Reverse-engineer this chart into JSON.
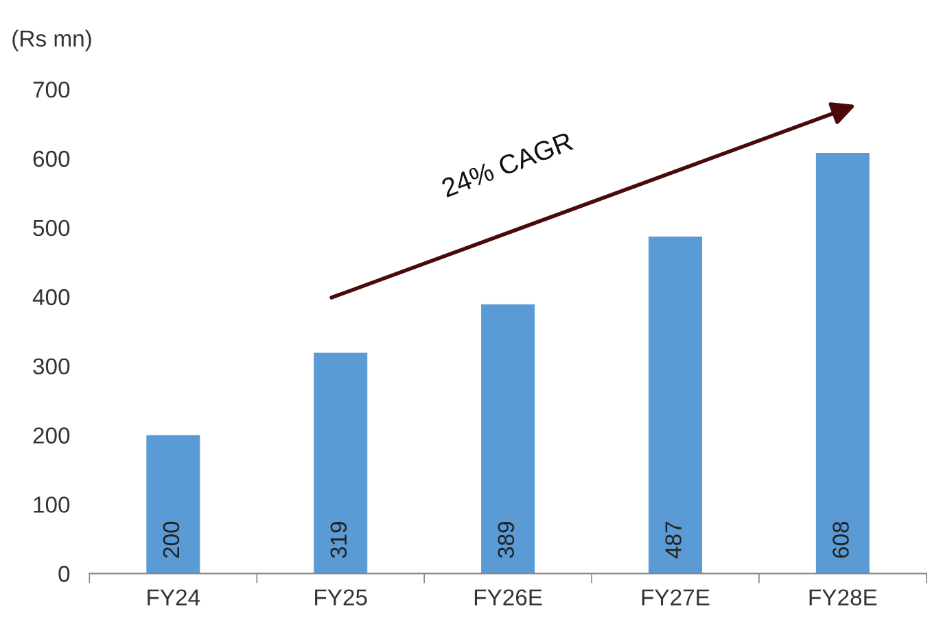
{
  "chart_data": {
    "type": "bar",
    "ylabel": "(Rs mn)",
    "categories": [
      "FY24",
      "FY25",
      "FY26E",
      "FY27E",
      "FY28E"
    ],
    "values": [
      200,
      319,
      389,
      487,
      608
    ],
    "color": "#5b9bd5",
    "ylim": [
      0,
      700
    ],
    "yticks": [
      0,
      100,
      200,
      300,
      400,
      500,
      600,
      700
    ],
    "data_labels": true,
    "grid": false,
    "legend": false,
    "annotations": [
      "24% CAGR"
    ]
  }
}
